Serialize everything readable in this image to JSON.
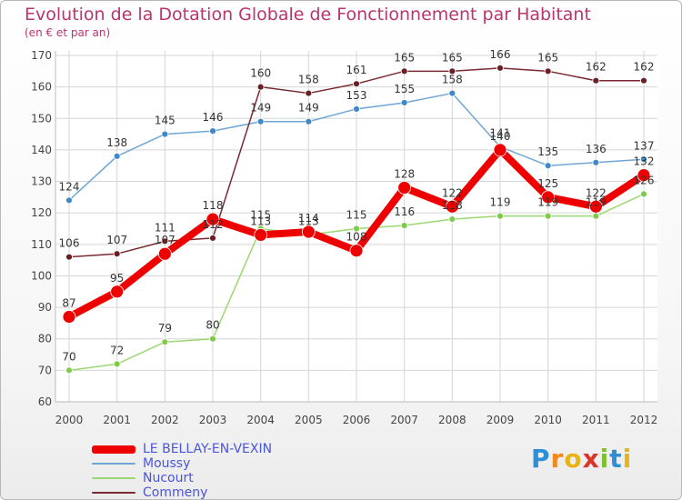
{
  "header": {
    "title": "Evolution de la Dotation Globale de Fonctionnement par Habitant",
    "subtitle": "(en € et par an)"
  },
  "logo": {
    "text": "Proxiti",
    "letters": [
      "P",
      "r",
      "o",
      "x",
      "i",
      "t",
      "i"
    ],
    "colors": [
      "#2d8fd6",
      "#f0891f",
      "#e8b417",
      "#d9352a",
      "#7fbf32",
      "#2d8fd6",
      "#e8b417"
    ]
  },
  "chart_data": {
    "type": "line",
    "title": "Evolution de la Dotation Globale de Fonctionnement par Habitant",
    "subtitle": "(en € et par an)",
    "xlabel": "",
    "ylabel": "",
    "ylim": [
      60,
      170
    ],
    "yticks": [
      60,
      70,
      80,
      90,
      100,
      110,
      120,
      130,
      140,
      150,
      160,
      170
    ],
    "grid": true,
    "legend_position": "bottom-left",
    "categories": [
      "2000",
      "2001",
      "2002",
      "2003",
      "2004",
      "2005",
      "2006",
      "2007",
      "2008",
      "2009",
      "2010",
      "2011",
      "2012"
    ],
    "series": [
      {
        "name": "Nucourt",
        "color": "#9bd873",
        "marker": "#7ecb4a",
        "width": 1.5,
        "r": 3.5,
        "values": [
          70,
          72,
          79,
          80,
          115,
          113,
          115,
          116,
          118,
          119,
          119,
          119,
          126
        ]
      },
      {
        "name": "Moussy",
        "color": "#6fa6d6",
        "marker": "#3f88c9",
        "width": 1.5,
        "r": 3.5,
        "values": [
          124,
          138,
          145,
          146,
          149,
          149,
          153,
          155,
          158,
          141,
          135,
          136,
          137
        ]
      },
      {
        "name": "Commeny",
        "color": "#7a2a30",
        "marker": "#6a1f24",
        "width": 1.5,
        "r": 3.5,
        "values": [
          106,
          107,
          111,
          112,
          160,
          158,
          161,
          165,
          165,
          166,
          165,
          162,
          162
        ]
      },
      {
        "name": "LE BELLAY-EN-VEXIN",
        "color": "#ee0000",
        "marker": "#ee0000",
        "width": 8,
        "r": 7,
        "values": [
          87,
          95,
          107,
          118,
          113,
          114,
          108,
          128,
          122,
          140,
          125,
          122,
          132
        ]
      }
    ],
    "legend_order": [
      "LE BELLAY-EN-VEXIN",
      "Moussy",
      "Nucourt",
      "Commeny"
    ]
  }
}
